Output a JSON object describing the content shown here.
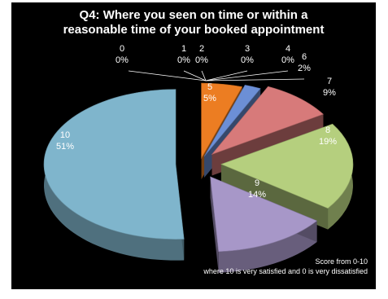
{
  "chart_data": {
    "type": "pie",
    "title_line1": "Q4: Where you seen on time or within a",
    "title_line2": "reasonable time of your booked appointment",
    "slices": [
      {
        "label": "0",
        "pct": "0%",
        "value": 0,
        "color": "#d9d9d9"
      },
      {
        "label": "1",
        "pct": "0%",
        "value": 0,
        "color": "#d9d9d9"
      },
      {
        "label": "2",
        "pct": "0%",
        "value": 0,
        "color": "#d9d9d9"
      },
      {
        "label": "3",
        "pct": "0%",
        "value": 0,
        "color": "#d9d9d9"
      },
      {
        "label": "4",
        "pct": "0%",
        "value": 0,
        "color": "#d9d9d9"
      },
      {
        "label": "5",
        "pct": "5%",
        "value": 5,
        "color": "#ec7d22"
      },
      {
        "label": "6",
        "pct": "2%",
        "value": 2,
        "color": "#6c8fd6"
      },
      {
        "label": "7",
        "pct": "9%",
        "value": 9,
        "color": "#d77a7a"
      },
      {
        "label": "8",
        "pct": "19%",
        "value": 19,
        "color": "#b5cf7e"
      },
      {
        "label": "9",
        "pct": "14%",
        "value": 14,
        "color": "#a797c8"
      },
      {
        "label": "10",
        "pct": "51%",
        "value": 51,
        "color": "#7fb5cc"
      }
    ],
    "note_line1": "Score from 0-10",
    "note_line2": "where 10 is very satisfied and  0 is very dissatisfied"
  }
}
